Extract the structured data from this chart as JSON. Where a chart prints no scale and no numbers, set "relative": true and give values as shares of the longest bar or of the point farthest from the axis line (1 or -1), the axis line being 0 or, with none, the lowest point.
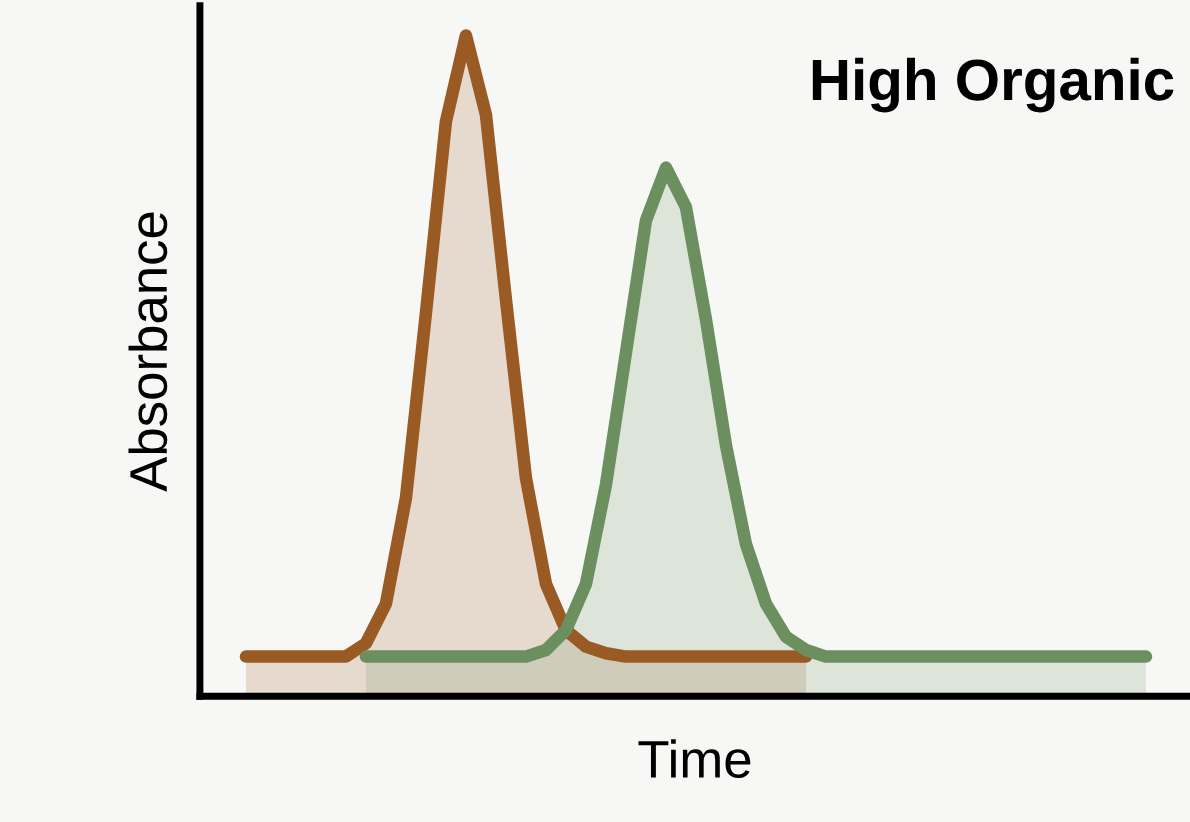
{
  "chart_data": {
    "type": "area",
    "relative": true,
    "xlabel": "Time",
    "ylabel": "Absorbance",
    "annotations": [
      "High Organic"
    ],
    "categories": [
      null,
      null,
      null,
      null,
      null,
      null,
      null,
      null,
      null,
      null,
      null,
      null,
      null,
      null,
      null,
      null,
      null,
      null,
      null,
      null,
      null,
      null,
      null,
      null,
      null,
      null,
      null,
      null,
      null,
      null,
      null,
      null,
      null,
      null,
      null,
      null,
      null,
      null,
      null,
      null,
      null,
      null,
      null,
      null,
      null,
      null
    ],
    "series": [
      {
        "color": "#9a5a23",
        "values": [
          0.06,
          0.06,
          0.06,
          0.06,
          0.06,
          0.06,
          0.08,
          0.14,
          0.3,
          0.58,
          0.87,
          1.0,
          0.88,
          0.6,
          0.33,
          0.17,
          0.1,
          0.075,
          0.065,
          0.06,
          0.06,
          0.06,
          0.06,
          0.06,
          0.06,
          0.06,
          0.06,
          0.06,
          0.06,
          null,
          null,
          null,
          null,
          null,
          null,
          null,
          null,
          null,
          null,
          null,
          null,
          null,
          null,
          null,
          null,
          null
        ]
      },
      {
        "color": "#6b8f5e",
        "values": [
          null,
          null,
          null,
          null,
          null,
          null,
          0.06,
          0.06,
          0.06,
          0.06,
          0.06,
          0.06,
          0.06,
          0.06,
          0.06,
          0.07,
          0.1,
          0.17,
          0.32,
          0.52,
          0.72,
          0.8,
          0.74,
          0.57,
          0.38,
          0.23,
          0.14,
          0.09,
          0.07,
          0.06,
          0.06,
          0.06,
          0.06,
          0.06,
          0.06,
          0.06,
          0.06,
          0.06,
          0.06,
          0.06,
          0.06,
          0.06,
          0.06,
          0.06,
          0.06,
          0.06
        ]
      }
    ]
  }
}
